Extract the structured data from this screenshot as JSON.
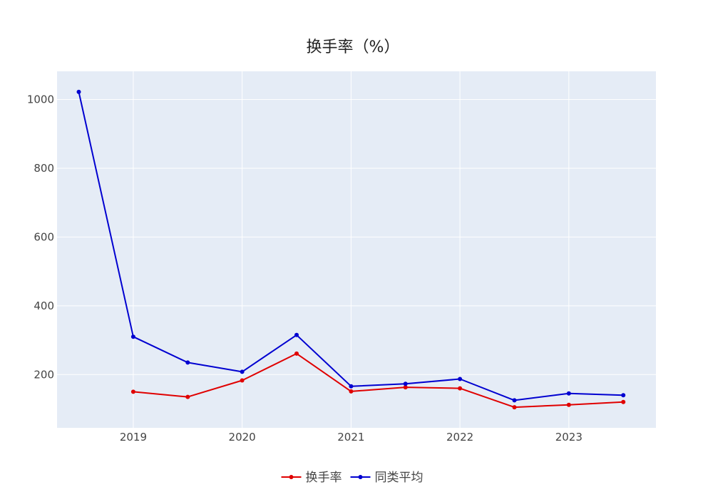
{
  "chart_data": {
    "type": "line",
    "title": "换手率（%）",
    "xlabel": "",
    "ylabel": "",
    "x": [
      2018.5,
      2019.0,
      2019.5,
      2020.0,
      2020.5,
      2021.0,
      2021.5,
      2022.0,
      2022.5,
      2023.0,
      2023.5
    ],
    "xlim": [
      2018.3,
      2023.8
    ],
    "ylim": [
      45,
      1082
    ],
    "x_ticks": [
      2019,
      2020,
      2021,
      2022,
      2023
    ],
    "x_tick_labels": [
      "2019",
      "2020",
      "2021",
      "2022",
      "2023"
    ],
    "y_ticks": [
      200,
      400,
      600,
      800,
      1000
    ],
    "y_tick_labels": [
      "200",
      "400",
      "600",
      "800",
      "1000"
    ],
    "grid": true,
    "legend_position": "bottom-center",
    "plot_bg": "#e5ecf6",
    "grid_color": "#ffffff",
    "series": [
      {
        "name": "换手率",
        "color": "#e00000",
        "values": [
          null,
          150,
          135,
          183,
          261,
          151,
          163,
          160,
          105,
          112,
          120
        ]
      },
      {
        "name": "同类平均",
        "color": "#0000d0",
        "values": [
          1022,
          310,
          235,
          208,
          315,
          166,
          173,
          187,
          125,
          145,
          140
        ]
      }
    ]
  }
}
